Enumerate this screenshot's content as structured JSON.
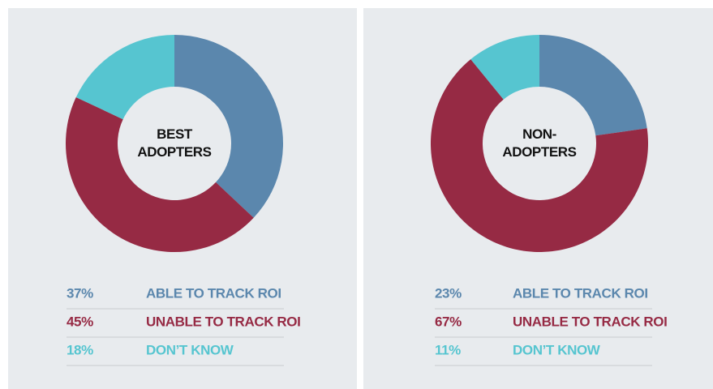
{
  "chart_data": [
    {
      "type": "pie",
      "donut": true,
      "title": "BEST ADOPTERS",
      "categories": [
        "ABLE TO TRACK ROI",
        "UNABLE TO TRACK ROI",
        "DON’T KNOW"
      ],
      "values": [
        37,
        45,
        18
      ],
      "value_labels": [
        "37%",
        "45%",
        "18%"
      ],
      "colors": [
        "#5b87ad",
        "#962a44",
        "#56c5d0"
      ]
    },
    {
      "type": "pie",
      "donut": true,
      "title": "NON-ADOPTERS",
      "categories": [
        "ABLE TO TRACK ROI",
        "UNABLE TO TRACK ROI",
        "DON’T KNOW"
      ],
      "values": [
        23,
        67,
        11
      ],
      "value_labels": [
        "23%",
        "67%",
        "11%"
      ],
      "colors": [
        "#5b87ad",
        "#962a44",
        "#56c5d0"
      ]
    }
  ]
}
